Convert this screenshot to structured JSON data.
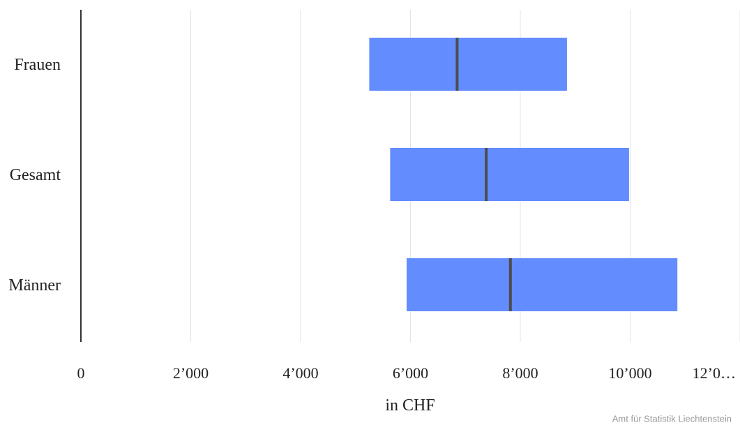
{
  "chart_data": {
    "type": "boxplot",
    "orientation": "horizontal",
    "categories": [
      "Frauen",
      "Gesamt",
      "Männer"
    ],
    "boxes": [
      {
        "category": "Frauen",
        "q1": 5250,
        "median": 6850,
        "q3": 8850
      },
      {
        "category": "Gesamt",
        "q1": 5630,
        "median": 7380,
        "q3": 9980
      },
      {
        "category": "Männer",
        "q1": 5930,
        "median": 7820,
        "q3": 10860
      }
    ],
    "x_ticks": [
      "0",
      "2’000",
      "4’000",
      "6’000",
      "8’000",
      "10’000",
      "12’0…"
    ],
    "x_tick_values": [
      0,
      2000,
      4000,
      6000,
      8000,
      10000,
      12000
    ],
    "xlabel": "in CHF",
    "xlim": [
      0,
      12000
    ],
    "grid": true,
    "box_color": "#638cff",
    "median_color": "#4d4d4d"
  },
  "credit": "Amt für Statistik Liechtenstein"
}
